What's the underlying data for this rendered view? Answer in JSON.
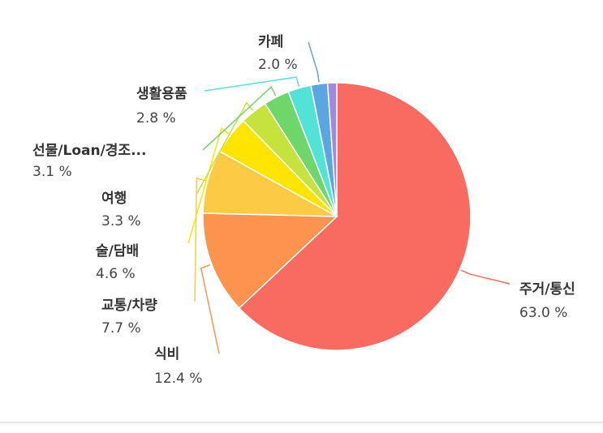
{
  "chart_data": {
    "type": "pie",
    "categories": [
      "주거/통신",
      "식비",
      "교통/차량",
      "술/담배",
      "여행",
      "선물/Loan/경조...",
      "생활용품",
      "카페",
      null
    ],
    "values": [
      63.0,
      12.4,
      7.7,
      4.6,
      3.3,
      3.1,
      2.8,
      2.0,
      1.1
    ],
    "value_labels": [
      "63.0 %",
      "12.4 %",
      "7.7 %",
      "4.6 %",
      "3.3 %",
      "3.1 %",
      "2.8 %",
      "2.0 %",
      null
    ],
    "colors": [
      "#f96b60",
      "#fc9450",
      "#fdca45",
      "#fde500",
      "#c5e33c",
      "#6fd66a",
      "#52e3d6",
      "#5aa6e0",
      "#a08ae0"
    ]
  }
}
